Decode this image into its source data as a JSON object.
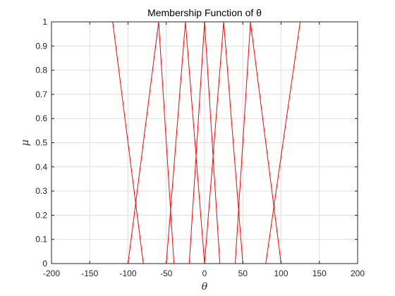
{
  "chart_data": {
    "type": "line",
    "title": "Membership Function of θ",
    "xlabel": "θ",
    "ylabel": "μ",
    "xlim": [
      -200,
      200
    ],
    "ylim": [
      0,
      1
    ],
    "xticks": [
      "-200",
      "-150",
      "-100",
      "-50",
      "0",
      "50",
      "100",
      "150",
      "200"
    ],
    "yticks": [
      "0",
      "0.1",
      "0.2",
      "0.3",
      "0.4",
      "0.5",
      "0.6",
      "0.7",
      "0.8",
      "0.9",
      "1"
    ],
    "grid": true,
    "line_color": "#ff0000",
    "series": [
      {
        "x": [
          -180,
          -120,
          -80
        ],
        "y": [
          1,
          1,
          0
        ]
      },
      {
        "x": [
          -100,
          -60,
          -40
        ],
        "y": [
          0,
          1,
          0
        ]
      },
      {
        "x": [
          -50,
          -25,
          0
        ],
        "y": [
          0,
          1,
          0
        ]
      },
      {
        "x": [
          -20,
          0,
          20
        ],
        "y": [
          0,
          1,
          0
        ]
      },
      {
        "x": [
          0,
          25,
          50
        ],
        "y": [
          0,
          1,
          0
        ]
      },
      {
        "x": [
          40,
          60,
          100
        ],
        "y": [
          0,
          1,
          0
        ]
      },
      {
        "x": [
          80,
          125,
          180
        ],
        "y": [
          0,
          1,
          1
        ]
      }
    ]
  }
}
